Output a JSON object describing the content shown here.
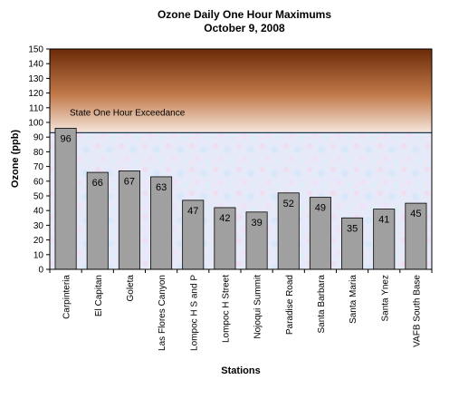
{
  "chart_data": {
    "type": "bar",
    "title": "Ozone Daily One Hour Maximums",
    "subtitle": "October 9, 2008",
    "xlabel": "Stations",
    "ylabel": "Ozone (ppb)",
    "ylim": [
      0,
      150
    ],
    "ytick_step": 10,
    "grid": false,
    "categories": [
      "Carpinteria",
      "El Capitan",
      "Goleta",
      "Las Flores Canyon",
      "Lompoc H S and P",
      "Lompoc H Street",
      "Nojoqui Summit",
      "Paradise Road",
      "Santa Barbara",
      "Santa Maria",
      "Santa Ynez",
      "VAFB South Base"
    ],
    "values": [
      96,
      66,
      67,
      63,
      47,
      42,
      39,
      52,
      49,
      35,
      41,
      45
    ],
    "data_labels": [
      "96",
      "66",
      "67",
      "63",
      "47",
      "42",
      "39",
      "52",
      "49",
      "35",
      "41",
      "45"
    ],
    "threshold": {
      "value": 93,
      "label": "State One Hour Exceedance"
    },
    "colors": {
      "bar": "#a0a0a0",
      "exceedance_top": "#6b2a08",
      "exceedance_bottom": "#f5e6dc",
      "threshold_line": "#1a3a5a"
    }
  }
}
